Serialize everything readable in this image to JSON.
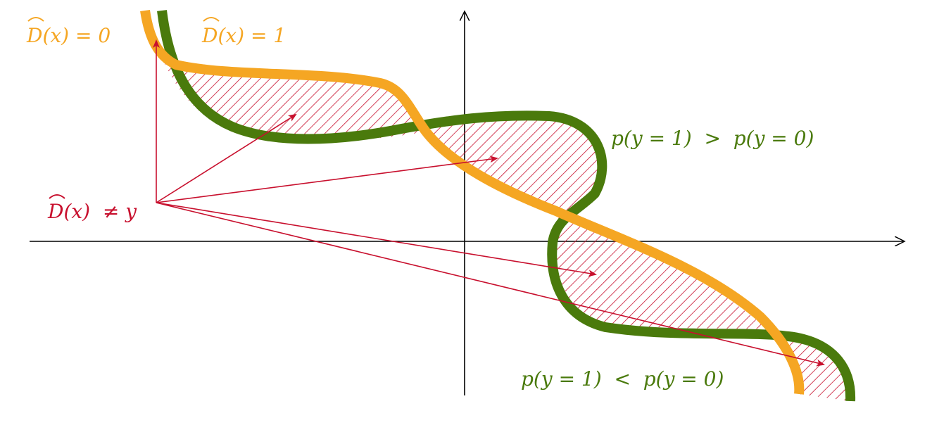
{
  "labels": {
    "d0": "D(x) = 0",
    "d1": "D(x) = 1",
    "dneq": "D(x)  ≠ y",
    "p_gt": "p(y = 1)  >  p(y = 0)",
    "p_lt": "p(y = 1)  <  p(y = 0)"
  },
  "colors": {
    "orange": "#f5a623",
    "green": "#4a7a0c",
    "red": "#c8102e",
    "axis": "#000000"
  }
}
